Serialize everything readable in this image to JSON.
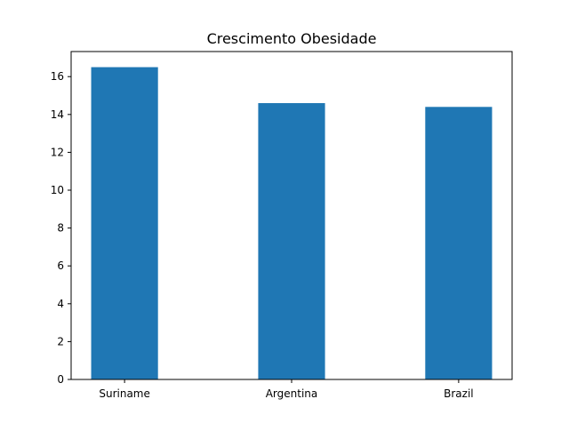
{
  "chart_data": {
    "type": "bar",
    "title": "Crescimento Obesidade",
    "xlabel": "",
    "ylabel": "",
    "categories": [
      "Suriname",
      "Argentina",
      "Brazil"
    ],
    "values": [
      16.5,
      14.6,
      14.4
    ],
    "ylim": [
      0,
      17.325
    ],
    "yticks": [
      "0",
      "2",
      "4",
      "6",
      "8",
      "10",
      "12",
      "14",
      "16"
    ],
    "bar_color": "#1f77b4",
    "grid": false,
    "legend": "none"
  }
}
